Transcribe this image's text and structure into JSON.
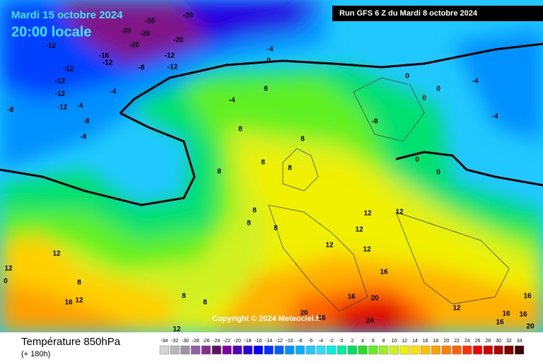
{
  "header": {
    "valid_date": "Mardi 15 octobre 2024",
    "local_time": "20:00 locale",
    "run": "Run GFS 6 Z du Mardi 8 octobre 2024"
  },
  "copyright": "Copyright © 2024 Meteociel.fr",
  "footer": {
    "title": "Température 850hPa",
    "lead": "(+ 180h)"
  },
  "legend": [
    {
      "value": -34,
      "color": "#d4d4d4"
    },
    {
      "value": -32,
      "color": "#b8b8b8"
    },
    {
      "value": -30,
      "color": "#a090a8"
    },
    {
      "value": -28,
      "color": "#9060a0"
    },
    {
      "value": -26,
      "color": "#803088"
    },
    {
      "value": -24,
      "color": "#601060"
    },
    {
      "value": -22,
      "color": "#8000a8"
    },
    {
      "value": -20,
      "color": "#5000c0"
    },
    {
      "value": -18,
      "color": "#2800e0"
    },
    {
      "value": -16,
      "color": "#0000ff"
    },
    {
      "value": -14,
      "color": "#0030ff"
    },
    {
      "value": -12,
      "color": "#0060ff"
    },
    {
      "value": -10,
      "color": "#0090ff"
    },
    {
      "value": -8,
      "color": "#00b0ff"
    },
    {
      "value": -6,
      "color": "#20c8ff"
    },
    {
      "value": -4,
      "color": "#30dcf8"
    },
    {
      "value": -2,
      "color": "#00f0e0"
    },
    {
      "value": 0,
      "color": "#00f0a0"
    },
    {
      "value": 2,
      "color": "#00e060"
    },
    {
      "value": 4,
      "color": "#20e020"
    },
    {
      "value": 6,
      "color": "#60f020"
    },
    {
      "value": 8,
      "color": "#a0f020"
    },
    {
      "value": 10,
      "color": "#d0f020"
    },
    {
      "value": 12,
      "color": "#f0f000"
    },
    {
      "value": 14,
      "color": "#ffe000"
    },
    {
      "value": 16,
      "color": "#ffc000"
    },
    {
      "value": 18,
      "color": "#ffa000"
    },
    {
      "value": 20,
      "color": "#ff8000"
    },
    {
      "value": 22,
      "color": "#ff6000"
    },
    {
      "value": 24,
      "color": "#ff3000"
    },
    {
      "value": 26,
      "color": "#f00000"
    },
    {
      "value": 28,
      "color": "#d00000"
    },
    {
      "value": 30,
      "color": "#b00000"
    },
    {
      "value": 32,
      "color": "#800000"
    },
    {
      "value": 34,
      "color": "#400000"
    }
  ],
  "contour_labels": [
    -20,
    -20,
    -20,
    -20,
    -20,
    -20,
    -12,
    -16,
    -12,
    -12,
    -8,
    -12,
    -12,
    -12,
    -12,
    -4,
    -12,
    -4,
    -8,
    -8,
    -8,
    -4,
    0,
    -4,
    8,
    8,
    8,
    8,
    8,
    8,
    8,
    8,
    8,
    0,
    0,
    0,
    -4,
    -4,
    -8,
    0,
    0,
    12,
    12,
    12,
    12,
    12,
    16,
    12,
    12,
    8,
    16,
    12,
    8,
    8,
    16,
    20,
    24,
    20,
    16,
    12,
    16,
    16,
    16,
    16,
    20,
    12,
    0
  ]
}
